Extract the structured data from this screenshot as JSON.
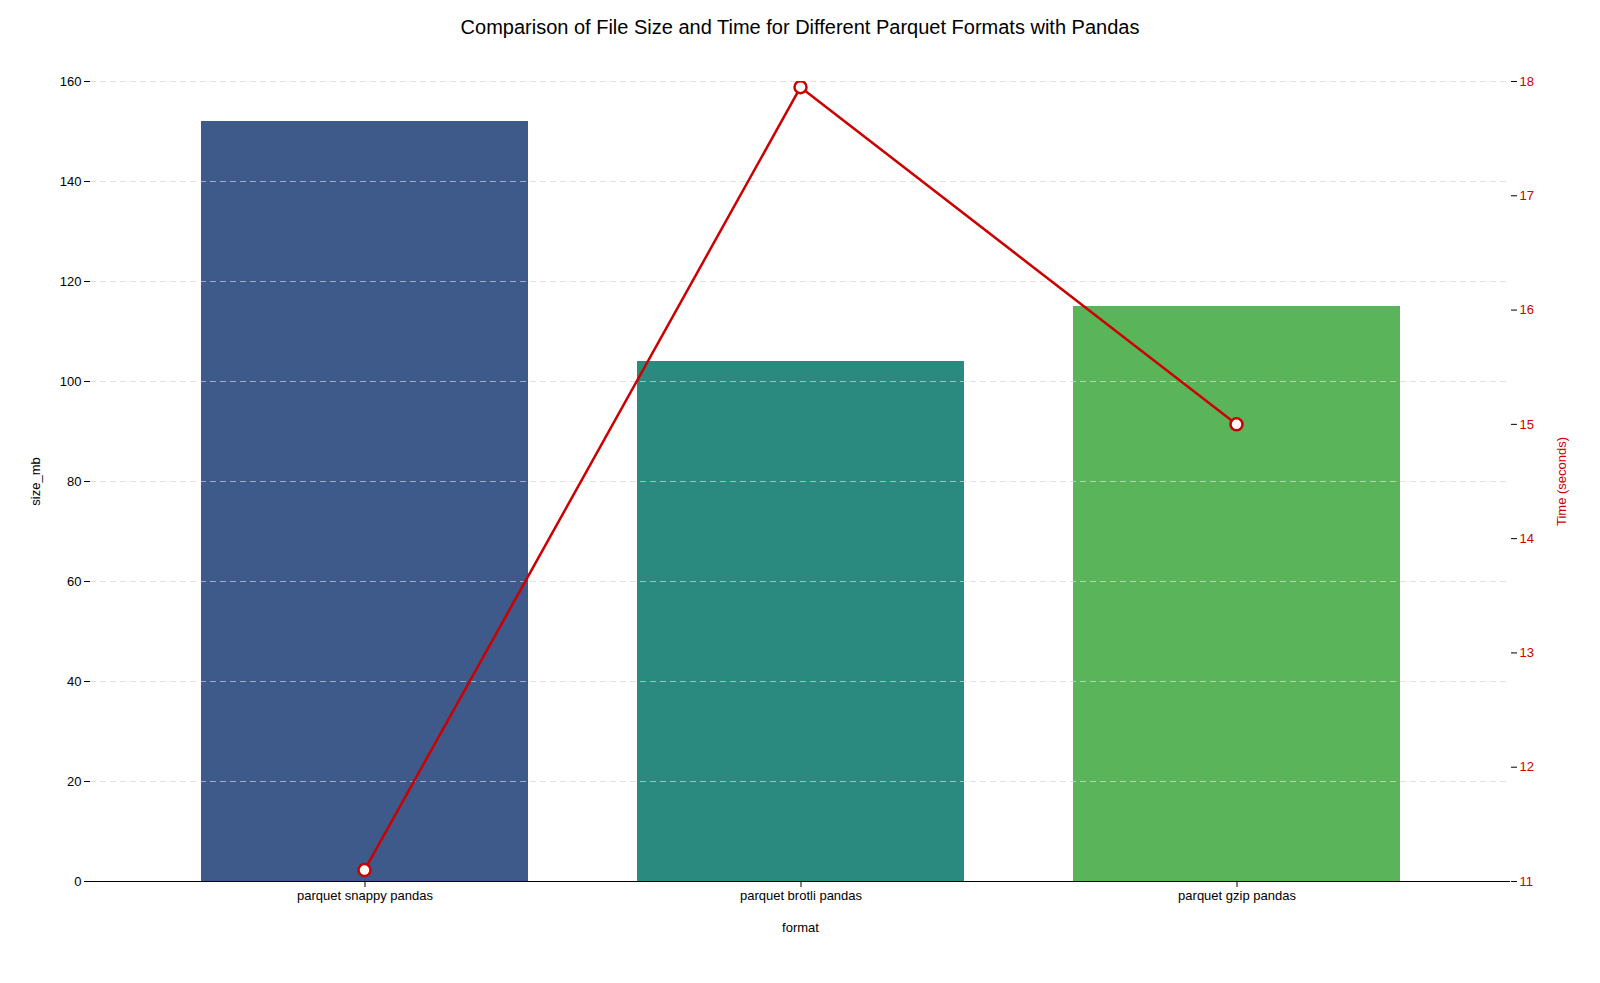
{
  "chart_data": {
    "type": "bar",
    "title": "Comparison of File Size and Time for Different Parquet Formats with Pandas",
    "xlabel": "format",
    "ylabel": "size_mb",
    "y2label": "Time (seconds)",
    "categories": [
      "parquet snappy pandas",
      "parquet brotli pandas",
      "parquet gzip pandas"
    ],
    "series": [
      {
        "type": "bar",
        "colors": [
          "#3d5a8a",
          "#2a8a80",
          "#5ab55a"
        ],
        "values": [
          152,
          104,
          115
        ]
      },
      {
        "type": "line",
        "axis": "y2",
        "color": "#cc0000",
        "marker": "circle",
        "values": [
          11.1,
          17.95,
          15.0
        ]
      }
    ],
    "ylim": [
      0,
      160
    ],
    "yticks": [
      0,
      20,
      40,
      60,
      80,
      100,
      120,
      140,
      160
    ],
    "y2lim": [
      11,
      18
    ],
    "y2ticks": [
      11,
      12,
      13,
      14,
      15,
      16,
      17,
      18
    ],
    "grid": true
  }
}
